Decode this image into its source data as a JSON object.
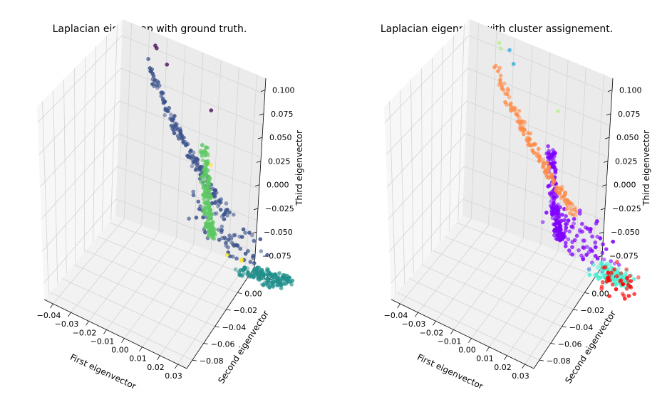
{
  "chart_data": [
    {
      "type": "scatter",
      "projection": "3d",
      "title": "Laplacian eigenmap with ground truth.",
      "xlabel": "First eigenvector",
      "ylabel": "Second eigenvector",
      "zlabel": "Third eigenvector",
      "xlim": [
        -0.04,
        0.035
      ],
      "ylim": [
        -0.085,
        0.03
      ],
      "zlim": [
        -0.085,
        0.115
      ],
      "xticks": [
        "−0.04",
        "−0.03",
        "−0.02",
        "−0.01",
        "0.00",
        "0.01",
        "0.02",
        "0.03"
      ],
      "yticks": [
        "−0.08",
        "−0.06",
        "−0.04",
        "−0.02",
        "0.00",
        "0.02"
      ],
      "zticks": [
        "−0.075",
        "−0.050",
        "−0.025",
        "0.000",
        "0.025",
        "0.050",
        "0.075",
        "0.100"
      ],
      "grid": true,
      "colors": [
        "#440154",
        "#3b528b",
        "#21908d",
        "#5dc863",
        "#fde725"
      ],
      "clusters": [
        {
          "class": 0,
          "color": "#440154",
          "points": [
            [
              -0.03,
              0.01,
              0.108
            ],
            [
              -0.026,
              0.012,
              0.109
            ],
            [
              -0.02,
              0.008,
              0.101
            ],
            [
              0.03,
              0.011,
              0.11
            ]
          ]
        },
        {
          "class": 1,
          "color": "#3b528b",
          "arm": "left",
          "n": 150,
          "x": [
            -0.035,
            -0.015
          ],
          "y": [
            0.01,
            -0.04
          ],
          "z": [
            0.085,
            -0.02
          ]
        },
        {
          "class": 1,
          "color": "#3b528b",
          "spread": "valley",
          "n": 70,
          "x": [
            -0.02,
            0.02
          ],
          "y": [
            -0.05,
            -0.01
          ],
          "z": [
            -0.05,
            -0.01
          ]
        },
        {
          "class": 2,
          "color": "#21908d",
          "arm": "bottom",
          "n": 150,
          "x": [
            -0.012,
            0.01
          ],
          "y": [
            -0.08,
            -0.045
          ],
          "z": [
            -0.075,
            -0.045
          ]
        },
        {
          "class": 3,
          "color": "#5dc863",
          "arm": "right",
          "n": 170,
          "x": [
            0.01,
            0.035
          ],
          "y": [
            -0.01,
            0.02
          ],
          "z": [
            -0.03,
            0.075
          ]
        },
        {
          "class": 4,
          "color": "#fde725",
          "points": [
            [
              0.03,
              0.01,
              0.055
            ],
            [
              0.0,
              -0.03,
              -0.052
            ],
            [
              -0.01,
              -0.05,
              -0.06
            ],
            [
              0.015,
              -0.03,
              -0.04
            ]
          ]
        }
      ]
    },
    {
      "type": "scatter",
      "projection": "3d",
      "title": "Laplacian eigenmap with cluster assignement.",
      "xlabel": "First eigenvector",
      "ylabel": "Second eigenvector",
      "zlabel": "Third eigenvector",
      "xlim": [
        -0.04,
        0.035
      ],
      "ylim": [
        -0.085,
        0.03
      ],
      "zlim": [
        -0.085,
        0.115
      ],
      "xticks": [
        "−0.04",
        "−0.03",
        "−0.02",
        "−0.01",
        "0.00",
        "0.01",
        "0.02",
        "0.03"
      ],
      "yticks": [
        "−0.08",
        "−0.06",
        "−0.04",
        "−0.02",
        "0.00",
        "0.02"
      ],
      "zticks": [
        "−0.075",
        "−0.050",
        "−0.025",
        "0.000",
        "0.025",
        "0.050",
        "0.075",
        "0.100"
      ],
      "grid": true,
      "colors": [
        "#8000ff",
        "#ff8c4a",
        "#4ef0d2",
        "#ff0000",
        "#b4f28a",
        "#2ca8e0"
      ],
      "clusters": [
        {
          "class": "purple",
          "color": "#8000ff",
          "arm": "right",
          "n": 170,
          "x": [
            0.01,
            0.035
          ],
          "y": [
            -0.01,
            0.02
          ],
          "z": [
            -0.03,
            0.075
          ]
        },
        {
          "class": "purple",
          "color": "#8000ff",
          "spread": "valley",
          "n": 80,
          "x": [
            -0.018,
            0.022
          ],
          "y": [
            -0.05,
            -0.01
          ],
          "z": [
            -0.05,
            -0.01
          ]
        },
        {
          "class": "orange",
          "color": "#ff8c4a",
          "arm": "left",
          "n": 150,
          "x": [
            -0.035,
            -0.015
          ],
          "y": [
            0.01,
            -0.04
          ],
          "z": [
            0.085,
            -0.02
          ]
        },
        {
          "class": "turquoise",
          "color": "#4ef0d2",
          "arm": "bottom",
          "n": 110,
          "x": [
            -0.012,
            0.002
          ],
          "y": [
            -0.08,
            -0.05
          ],
          "z": [
            -0.075,
            -0.05
          ]
        },
        {
          "class": "red",
          "color": "#ff0000",
          "spread": "bottom-right",
          "n": 40,
          "x": [
            0.0,
            0.015
          ],
          "y": [
            -0.075,
            -0.045
          ],
          "z": [
            -0.07,
            -0.04
          ]
        },
        {
          "class": "light-green",
          "color": "#b4f28a",
          "points": [
            [
              -0.032,
              0.011,
              0.108
            ],
            [
              -0.028,
              0.013,
              0.106
            ],
            [
              0.031,
              0.012,
              0.11
            ]
          ]
        },
        {
          "class": "blue",
          "color": "#2ca8e0",
          "points": [
            [
              -0.02,
              0.012,
              0.114
            ],
            [
              -0.018,
              0.01,
              0.103
            ]
          ]
        }
      ]
    }
  ]
}
